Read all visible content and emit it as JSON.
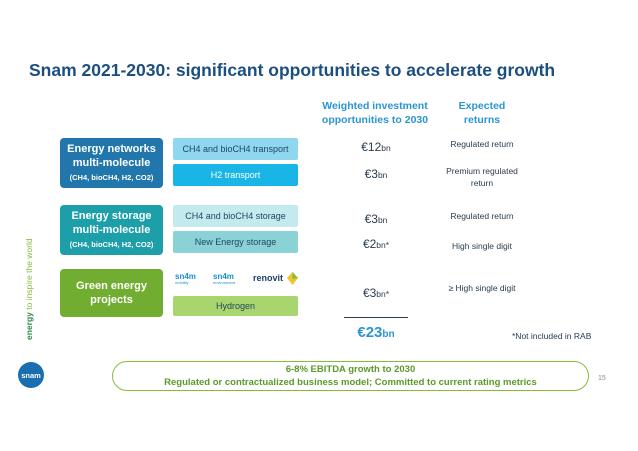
{
  "title": "Snam 2021-2030: significant opportunities to accelerate growth",
  "headers": {
    "investment": "Weighted investment opportunities to 2030",
    "returns": "Expected returns"
  },
  "groups": {
    "networks": {
      "title": "Energy networks multi-molecule",
      "subtitle": "(CH4, bioCH4, H2, CO2)"
    },
    "storage": {
      "title": "Energy storage multi-molecule",
      "subtitle": "(CH4, bioCH4, H2, CO2)"
    },
    "green": {
      "title": "Green energy projects"
    }
  },
  "rows": {
    "ch4_transport": {
      "label": "CH4 and bioCH4 transport",
      "value": "€12",
      "unit": "bn",
      "return": "Regulated return"
    },
    "h2_transport": {
      "label": "H2 transport",
      "value": "€3",
      "unit": "bn",
      "return": "Premium regulated return"
    },
    "ch4_storage": {
      "label": "CH4 and bioCH4 storage",
      "value": "€3",
      "unit": "bn",
      "return": "Regulated return"
    },
    "new_storage": {
      "label": "New Energy storage",
      "value": "€2",
      "unit": "bn*",
      "return": "High single digit"
    },
    "green": {
      "label": "Hydrogen",
      "value": "€3",
      "unit": "bn*",
      "return": "≥ High single digit"
    }
  },
  "brands": {
    "mobility": {
      "name": "sn4m",
      "sub": "mobility"
    },
    "environment": {
      "name": "sn4m",
      "sub": "environment"
    },
    "renovit": {
      "name": "renovit"
    }
  },
  "total": {
    "value": "€23",
    "unit": "bn"
  },
  "footnote": "*Not included in RAB",
  "bottom": {
    "line1": "6-8% EBITDA growth to 2030",
    "line2": "Regulated or contractualized business model; Committed to current rating metrics"
  },
  "page_number": "15",
  "vertical_text": {
    "bold": "energy",
    "rest": " to inspire the world"
  },
  "logo": "snam",
  "colors": {
    "title": "#1c4f80",
    "networks_box": "#2177ab",
    "storage_box": "#1d9fa9",
    "green_box": "#71ad31",
    "ch4_pill": "#8fd6ef",
    "h2_pill": "#19b5e6",
    "storage_pill1": "#c3ebef",
    "storage_pill2": "#8ad2d6",
    "hydrogen_pill": "#a8d56d",
    "total": "#2b95d2"
  }
}
